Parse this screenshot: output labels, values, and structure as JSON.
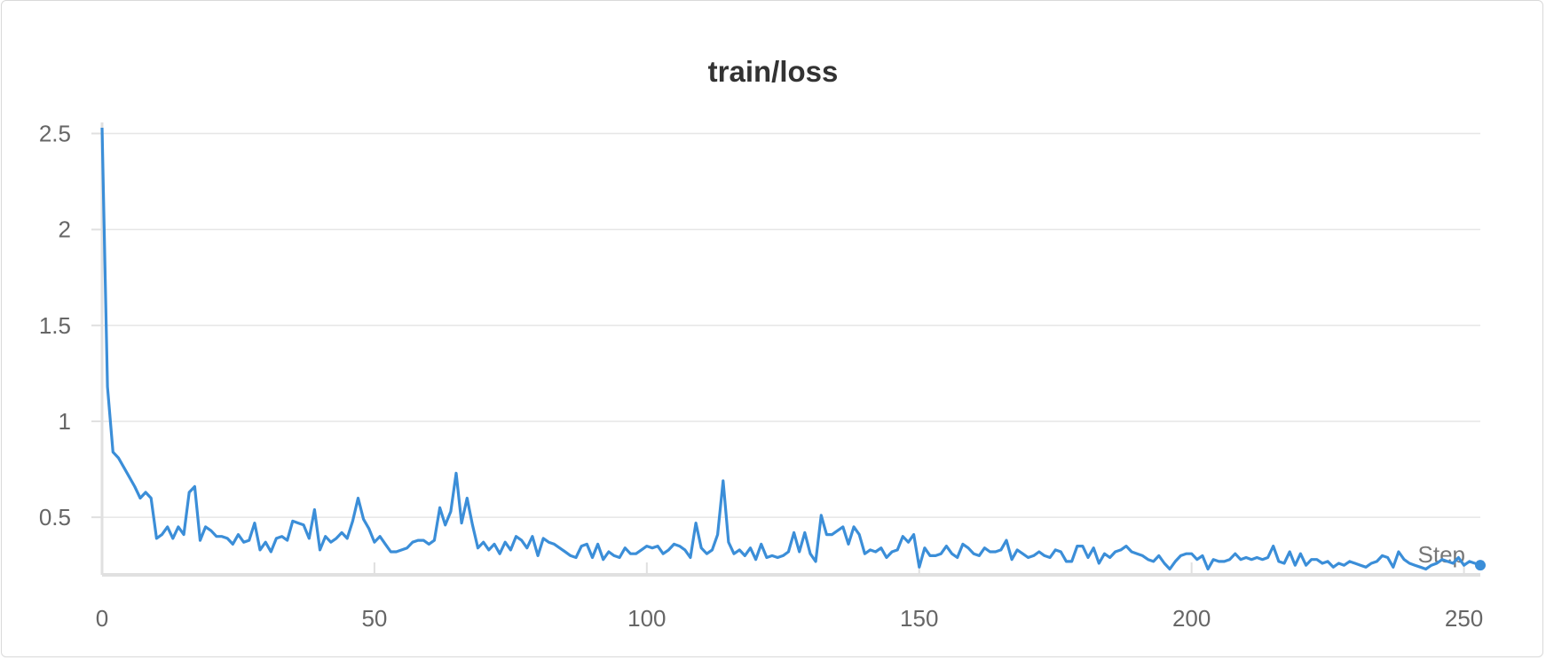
{
  "chart_data": {
    "type": "line",
    "title": "train/loss",
    "xlabel": "Step",
    "ylabel": "",
    "xlim": [
      0,
      253
    ],
    "ylim": [
      0.2,
      2.53
    ],
    "x_ticks": [
      "0",
      "50",
      "100",
      "150",
      "200",
      "250"
    ],
    "y_ticks": [
      "0.5",
      "1",
      "1.5",
      "2",
      "2.5"
    ],
    "grid": true,
    "line_color": "#3b8ed8",
    "series": [
      {
        "name": "",
        "x_start": 0,
        "x_step": 1,
        "values": [
          2.53,
          1.18,
          0.84,
          0.81,
          0.76,
          0.71,
          0.66,
          0.6,
          0.63,
          0.6,
          0.39,
          0.41,
          0.45,
          0.39,
          0.45,
          0.41,
          0.63,
          0.66,
          0.38,
          0.45,
          0.43,
          0.4,
          0.4,
          0.39,
          0.36,
          0.41,
          0.37,
          0.38,
          0.47,
          0.33,
          0.37,
          0.32,
          0.39,
          0.4,
          0.38,
          0.48,
          0.47,
          0.46,
          0.39,
          0.54,
          0.33,
          0.4,
          0.37,
          0.39,
          0.42,
          0.39,
          0.48,
          0.6,
          0.49,
          0.44,
          0.37,
          0.4,
          0.36,
          0.32,
          0.32,
          0.33,
          0.34,
          0.37,
          0.38,
          0.38,
          0.36,
          0.38,
          0.55,
          0.46,
          0.53,
          0.73,
          0.47,
          0.6,
          0.46,
          0.34,
          0.37,
          0.33,
          0.36,
          0.31,
          0.37,
          0.33,
          0.4,
          0.38,
          0.34,
          0.4,
          0.3,
          0.39,
          0.37,
          0.36,
          0.34,
          0.32,
          0.3,
          0.29,
          0.35,
          0.36,
          0.29,
          0.36,
          0.28,
          0.32,
          0.3,
          0.29,
          0.34,
          0.31,
          0.31,
          0.33,
          0.35,
          0.34,
          0.35,
          0.31,
          0.33,
          0.36,
          0.35,
          0.33,
          0.29,
          0.47,
          0.34,
          0.31,
          0.33,
          0.41,
          0.69,
          0.37,
          0.31,
          0.33,
          0.3,
          0.34,
          0.28,
          0.36,
          0.29,
          0.3,
          0.29,
          0.3,
          0.32,
          0.42,
          0.32,
          0.42,
          0.31,
          0.27,
          0.51,
          0.41,
          0.41,
          0.43,
          0.45,
          0.36,
          0.45,
          0.41,
          0.31,
          0.33,
          0.32,
          0.34,
          0.29,
          0.32,
          0.33,
          0.4,
          0.37,
          0.41,
          0.24,
          0.34,
          0.3,
          0.3,
          0.31,
          0.35,
          0.31,
          0.29,
          0.36,
          0.34,
          0.31,
          0.3,
          0.34,
          0.32,
          0.32,
          0.33,
          0.38,
          0.28,
          0.33,
          0.31,
          0.29,
          0.3,
          0.32,
          0.3,
          0.29,
          0.33,
          0.32,
          0.27,
          0.27,
          0.35,
          0.35,
          0.29,
          0.34,
          0.26,
          0.31,
          0.29,
          0.32,
          0.33,
          0.35,
          0.32,
          0.31,
          0.3,
          0.28,
          0.27,
          0.3,
          0.26,
          0.23,
          0.27,
          0.3,
          0.31,
          0.31,
          0.28,
          0.3,
          0.23,
          0.28,
          0.27,
          0.27,
          0.28,
          0.31,
          0.28,
          0.29,
          0.28,
          0.29,
          0.28,
          0.29,
          0.35,
          0.27,
          0.26,
          0.32,
          0.25,
          0.31,
          0.25,
          0.28,
          0.28,
          0.26,
          0.27,
          0.24,
          0.26,
          0.25,
          0.27,
          0.26,
          0.25,
          0.24,
          0.26,
          0.27,
          0.3,
          0.29,
          0.24,
          0.32,
          0.28,
          0.26,
          0.25,
          0.24,
          0.23,
          0.25,
          0.26,
          0.28,
          0.27,
          0.26,
          0.29,
          0.25,
          0.27,
          0.26,
          0.25
        ]
      }
    ]
  }
}
